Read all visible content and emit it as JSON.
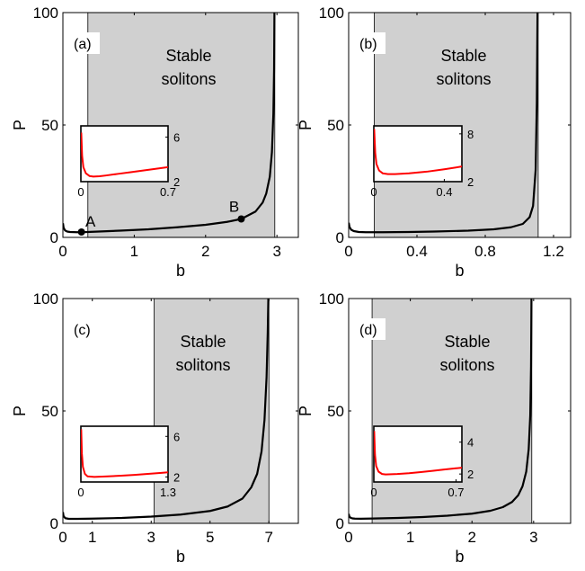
{
  "chart_data": [
    {
      "type": "line",
      "panel_label": "(a)",
      "region_label": [
        "Stable",
        "solitons"
      ],
      "xlabel": "b",
      "ylabel": "P",
      "xlim": [
        0,
        3.3
      ],
      "ylim": [
        0,
        100
      ],
      "xticks": [
        0,
        1,
        2,
        3
      ],
      "xtick_labels": [
        "0",
        "1",
        "2",
        "3"
      ],
      "yticks": [
        0,
        50,
        100
      ],
      "ytick_labels": [
        "0",
        "50",
        "100"
      ],
      "stable_band": [
        0.35,
        2.97
      ],
      "curve": {
        "x": [
          0.001,
          0.01,
          0.03,
          0.06,
          0.1,
          0.2,
          0.3,
          0.5,
          0.8,
          1.2,
          1.6,
          2.0,
          2.3,
          2.5,
          2.7,
          2.8,
          2.85,
          2.9,
          2.93,
          2.95,
          2.96,
          2.965
        ],
        "y": [
          6.3,
          4.3,
          3.1,
          2.6,
          2.4,
          2.3,
          2.35,
          2.6,
          3.0,
          3.6,
          4.5,
          5.6,
          6.9,
          8.2,
          11.5,
          15.5,
          19.5,
          27,
          38,
          55,
          75,
          100
        ]
      },
      "points": [
        {
          "label": "A",
          "x": 0.26,
          "y": 2.4
        },
        {
          "label": "B",
          "x": 2.5,
          "y": 8.2
        }
      ],
      "inset": {
        "xlim": [
          0,
          0.7
        ],
        "ylim": [
          2,
          7
        ],
        "xtick_labels": [
          "0",
          "0.7"
        ],
        "xticks": [
          0,
          0.7
        ],
        "ytick_labels": [
          "2",
          "6"
        ],
        "yticks": [
          2,
          6
        ],
        "color": "#ff0000",
        "x": [
          0.003,
          0.01,
          0.02,
          0.04,
          0.07,
          0.1,
          0.15,
          0.2,
          0.3,
          0.4,
          0.5,
          0.6,
          0.7
        ],
        "y": [
          6.4,
          4.3,
          3.3,
          2.75,
          2.5,
          2.45,
          2.48,
          2.55,
          2.7,
          2.85,
          3.0,
          3.15,
          3.3
        ]
      }
    },
    {
      "type": "line",
      "panel_label": "(b)",
      "region_label": [
        "Stable",
        "solitons"
      ],
      "xlabel": "b",
      "ylabel": "P",
      "xlim": [
        0,
        1.3
      ],
      "ylim": [
        0,
        100
      ],
      "xticks": [
        0,
        0.4,
        0.8,
        1.2
      ],
      "xtick_labels": [
        "0",
        "0.4",
        "0.8",
        "1.2"
      ],
      "yticks": [
        0,
        50,
        100
      ],
      "ytick_labels": [
        "0",
        "50",
        "100"
      ],
      "stable_band": [
        0.15,
        1.11
      ],
      "curve": {
        "x": [
          0.0005,
          0.005,
          0.015,
          0.03,
          0.06,
          0.1,
          0.2,
          0.35,
          0.5,
          0.7,
          0.85,
          0.95,
          1.02,
          1.06,
          1.08,
          1.095,
          1.102,
          1.106
        ],
        "y": [
          6.5,
          4.6,
          3.4,
          2.8,
          2.4,
          2.3,
          2.3,
          2.4,
          2.6,
          3.0,
          3.6,
          4.5,
          6.0,
          9.0,
          14,
          30,
          60,
          100
        ]
      },
      "points": [],
      "inset": {
        "xlim": [
          0,
          0.5
        ],
        "ylim": [
          2,
          9
        ],
        "xtick_labels": [
          "0",
          "0.4"
        ],
        "xticks": [
          0,
          0.4
        ],
        "ytick_labels": [
          "2",
          "8"
        ],
        "yticks": [
          2,
          8
        ],
        "color": "#ff0000",
        "x": [
          0.002,
          0.008,
          0.015,
          0.03,
          0.05,
          0.08,
          0.12,
          0.2,
          0.3,
          0.4,
          0.5
        ],
        "y": [
          8.6,
          5.6,
          4.2,
          3.4,
          3.05,
          2.95,
          2.95,
          3.05,
          3.25,
          3.55,
          3.9
        ]
      }
    },
    {
      "type": "line",
      "panel_label": "(c)",
      "region_label": [
        "Stable",
        "solitons"
      ],
      "xlabel": "b",
      "ylabel": "P",
      "xlim": [
        0,
        8
      ],
      "ylim": [
        0,
        100
      ],
      "xticks": [
        0,
        1,
        3,
        5,
        7
      ],
      "xtick_labels": [
        "0",
        "1",
        "3",
        "5",
        "7"
      ],
      "yticks": [
        0,
        50,
        100
      ],
      "ytick_labels": [
        "0",
        "50",
        "100"
      ],
      "stable_band": [
        3.1,
        7.0
      ],
      "curve": {
        "x": [
          0.002,
          0.02,
          0.08,
          0.2,
          0.5,
          1.0,
          2.0,
          3.0,
          4.0,
          5.0,
          5.6,
          6.1,
          6.4,
          6.6,
          6.75,
          6.85,
          6.92,
          6.96,
          6.98
        ],
        "y": [
          5.0,
          3.3,
          2.3,
          2.0,
          2.0,
          2.1,
          2.4,
          3.0,
          3.9,
          5.5,
          7.5,
          11,
          16,
          22,
          32,
          46,
          65,
          85,
          100
        ]
      },
      "points": [],
      "inset": {
        "xlim": [
          0,
          1.3
        ],
        "ylim": [
          1.5,
          7
        ],
        "xtick_labels": [
          "0",
          "1.3"
        ],
        "xticks": [
          0,
          1.3
        ],
        "ytick_labels": [
          "2",
          "6"
        ],
        "yticks": [
          2,
          6
        ],
        "color": "#ff0000",
        "x": [
          0.005,
          0.015,
          0.03,
          0.06,
          0.1,
          0.2,
          0.4,
          0.6,
          0.8,
          1.0,
          1.2,
          1.3
        ],
        "y": [
          6.7,
          4.3,
          3.0,
          2.3,
          2.05,
          2.0,
          2.05,
          2.12,
          2.2,
          2.3,
          2.4,
          2.45
        ]
      }
    },
    {
      "type": "line",
      "panel_label": "(d)",
      "region_label": [
        "Stable",
        "solitons"
      ],
      "xlabel": "b",
      "ylabel": "P",
      "xlim": [
        0,
        3.6
      ],
      "ylim": [
        0,
        100
      ],
      "xticks": [
        0,
        1,
        2,
        3
      ],
      "xtick_labels": [
        "0",
        "1",
        "2",
        "3"
      ],
      "yticks": [
        0,
        50,
        100
      ],
      "ytick_labels": [
        "0",
        "50",
        "100"
      ],
      "stable_band": [
        0.38,
        2.97
      ],
      "curve": {
        "x": [
          0.001,
          0.01,
          0.03,
          0.06,
          0.1,
          0.2,
          0.4,
          0.8,
          1.2,
          1.6,
          2.0,
          2.3,
          2.5,
          2.65,
          2.75,
          2.82,
          2.88,
          2.92,
          2.945,
          2.958,
          2.965
        ],
        "y": [
          4.2,
          3.1,
          2.5,
          2.2,
          2.1,
          2.05,
          2.15,
          2.4,
          2.8,
          3.4,
          4.3,
          5.6,
          7.2,
          9.5,
          12.5,
          16.5,
          23,
          33,
          48,
          70,
          100
        ]
      },
      "points": [],
      "inset": {
        "xlim": [
          0,
          0.75
        ],
        "ylim": [
          1.5,
          5
        ],
        "xtick_labels": [
          "0",
          "0.7"
        ],
        "xticks": [
          0,
          0.7
        ],
        "ytick_labels": [
          "2",
          "4"
        ],
        "yticks": [
          2,
          4
        ],
        "color": "#ff0000",
        "x": [
          0.003,
          0.01,
          0.02,
          0.04,
          0.07,
          0.1,
          0.2,
          0.3,
          0.4,
          0.5,
          0.6,
          0.7,
          0.75
        ],
        "y": [
          4.7,
          3.2,
          2.5,
          2.15,
          2.0,
          1.97,
          2.0,
          2.05,
          2.12,
          2.2,
          2.28,
          2.36,
          2.4
        ]
      }
    }
  ]
}
